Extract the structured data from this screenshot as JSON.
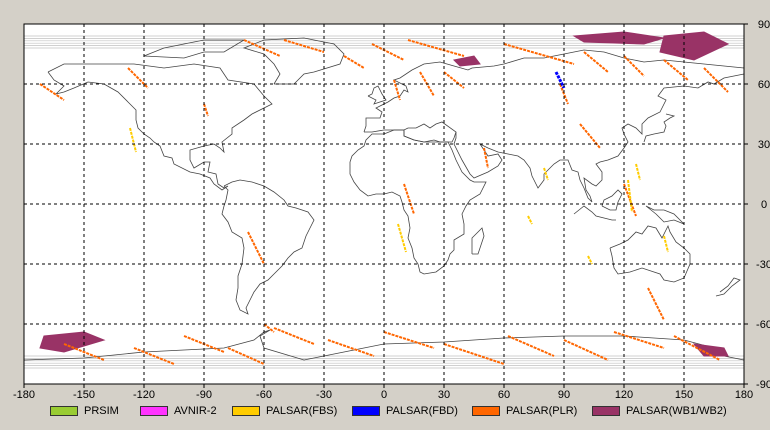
{
  "map": {
    "lon_range": [
      -180,
      180
    ],
    "lat_range": [
      -90,
      90
    ],
    "x_ticks": [
      "-180",
      "-150",
      "-120",
      "-90",
      "-60",
      "-30",
      "0",
      "30",
      "60",
      "90",
      "120",
      "150",
      "180"
    ],
    "y_ticks": [
      "90",
      "60",
      "30",
      "0",
      "-30",
      "-60",
      "-90"
    ],
    "x_tick_values": [
      -180,
      -150,
      -120,
      -90,
      -60,
      -30,
      0,
      30,
      60,
      90,
      120,
      150,
      180
    ],
    "y_tick_values": [
      90,
      60,
      30,
      0,
      -30,
      -60,
      -90
    ],
    "grid": "dashed",
    "colors": {
      "background": "#ffffff",
      "frame": "#d4d0c8",
      "coast": "#444444",
      "orbit": "#c0c0c0",
      "grid": "#000000"
    }
  },
  "legend": {
    "items": [
      {
        "label": "PRSIM",
        "color": "#99cc33"
      },
      {
        "label": "AVNIR-2",
        "color": "#ff33ff"
      },
      {
        "label": "PALSAR(FBS)",
        "color": "#ffcc00"
      },
      {
        "label": "PALSAR(FBD)",
        "color": "#0000ff"
      },
      {
        "label": "PALSAR(PLR)",
        "color": "#ff6600"
      },
      {
        "label": "PALSAR(WB1/WB2)",
        "color": "#993366"
      }
    ]
  },
  "observations": {
    "plr_segments": [
      [
        [
          -172,
          60
        ],
        [
          -160,
          52
        ]
      ],
      [
        [
          -128,
          68
        ],
        [
          -118,
          58
        ]
      ],
      [
        [
          -70,
          82
        ],
        [
          -52,
          74
        ]
      ],
      [
        [
          -50,
          82
        ],
        [
          -30,
          76
        ]
      ],
      [
        [
          -20,
          74
        ],
        [
          -10,
          68
        ]
      ],
      [
        [
          -6,
          80
        ],
        [
          10,
          72
        ]
      ],
      [
        [
          12,
          82
        ],
        [
          40,
          74
        ]
      ],
      [
        [
          30,
          66
        ],
        [
          40,
          58
        ]
      ],
      [
        [
          18,
          66
        ],
        [
          25,
          54
        ]
      ],
      [
        [
          5,
          62
        ],
        [
          8,
          52
        ]
      ],
      [
        [
          60,
          80
        ],
        [
          95,
          70
        ]
      ],
      [
        [
          100,
          76
        ],
        [
          112,
          66
        ]
      ],
      [
        [
          120,
          74
        ],
        [
          130,
          64
        ]
      ],
      [
        [
          140,
          72
        ],
        [
          152,
          62
        ]
      ],
      [
        [
          160,
          68
        ],
        [
          172,
          56
        ]
      ],
      [
        [
          88,
          60
        ],
        [
          92,
          50
        ]
      ],
      [
        [
          98,
          40
        ],
        [
          108,
          28
        ]
      ],
      [
        [
          10,
          10
        ],
        [
          15,
          -5
        ]
      ],
      [
        [
          50,
          28
        ],
        [
          52,
          18
        ]
      ],
      [
        [
          -90,
          50
        ],
        [
          -88,
          44
        ]
      ],
      [
        [
          -55,
          -62
        ],
        [
          -35,
          -70
        ]
      ],
      [
        [
          -28,
          -68
        ],
        [
          -5,
          -76
        ]
      ],
      [
        [
          0,
          -64
        ],
        [
          25,
          -72
        ]
      ],
      [
        [
          30,
          -70
        ],
        [
          60,
          -80
        ]
      ],
      [
        [
          62,
          -66
        ],
        [
          85,
          -76
        ]
      ],
      [
        [
          90,
          -68
        ],
        [
          112,
          -78
        ]
      ],
      [
        [
          115,
          -64
        ],
        [
          140,
          -72
        ]
      ],
      [
        [
          145,
          -66
        ],
        [
          168,
          -78
        ]
      ],
      [
        [
          -125,
          -72
        ],
        [
          -105,
          -80
        ]
      ],
      [
        [
          -100,
          -66
        ],
        [
          -80,
          -74
        ]
      ],
      [
        [
          -78,
          -72
        ],
        [
          -60,
          -80
        ]
      ],
      [
        [
          -160,
          -70
        ],
        [
          -140,
          -78
        ]
      ],
      [
        [
          -60,
          -60
        ],
        [
          -55,
          -64
        ]
      ],
      [
        [
          -68,
          -14
        ],
        [
          -60,
          -30
        ]
      ],
      [
        [
          120,
          10
        ],
        [
          126,
          -6
        ]
      ],
      [
        [
          132,
          -42
        ],
        [
          140,
          -58
        ]
      ]
    ],
    "fbs_segments": [
      [
        [
          -127,
          38
        ],
        [
          -124,
          26
        ]
      ],
      [
        [
          7,
          -10
        ],
        [
          11,
          -24
        ]
      ],
      [
        [
          80,
          18
        ],
        [
          82,
          12
        ]
      ],
      [
        [
          72,
          -6
        ],
        [
          74,
          -10
        ]
      ],
      [
        [
          102,
          -26
        ],
        [
          104,
          -30
        ]
      ],
      [
        [
          122,
          12
        ],
        [
          124,
          -4
        ]
      ],
      [
        [
          140,
          -16
        ],
        [
          142,
          -24
        ]
      ],
      [
        [
          126,
          20
        ],
        [
          128,
          12
        ]
      ]
    ],
    "fbd_segments": [
      [
        [
          86,
          66
        ],
        [
          90,
          58
        ]
      ]
    ],
    "wb_polygons": [
      [
        [
          95,
          84
        ],
        [
          120,
          86
        ],
        [
          140,
          83
        ],
        [
          130,
          80
        ],
        [
          100,
          81
        ]
      ],
      [
        [
          140,
          84
        ],
        [
          160,
          86
        ],
        [
          172,
          80
        ],
        [
          155,
          72
        ],
        [
          138,
          76
        ]
      ],
      [
        [
          -170,
          -66
        ],
        [
          -150,
          -64
        ],
        [
          -140,
          -68
        ],
        [
          -160,
          -74
        ],
        [
          -172,
          -72
        ]
      ],
      [
        [
          155,
          -70
        ],
        [
          170,
          -72
        ],
        [
          172,
          -76
        ],
        [
          160,
          -76
        ]
      ],
      [
        [
          35,
          72
        ],
        [
          45,
          74
        ],
        [
          48,
          70
        ],
        [
          38,
          69
        ]
      ]
    ],
    "orbit_count": 15
  }
}
